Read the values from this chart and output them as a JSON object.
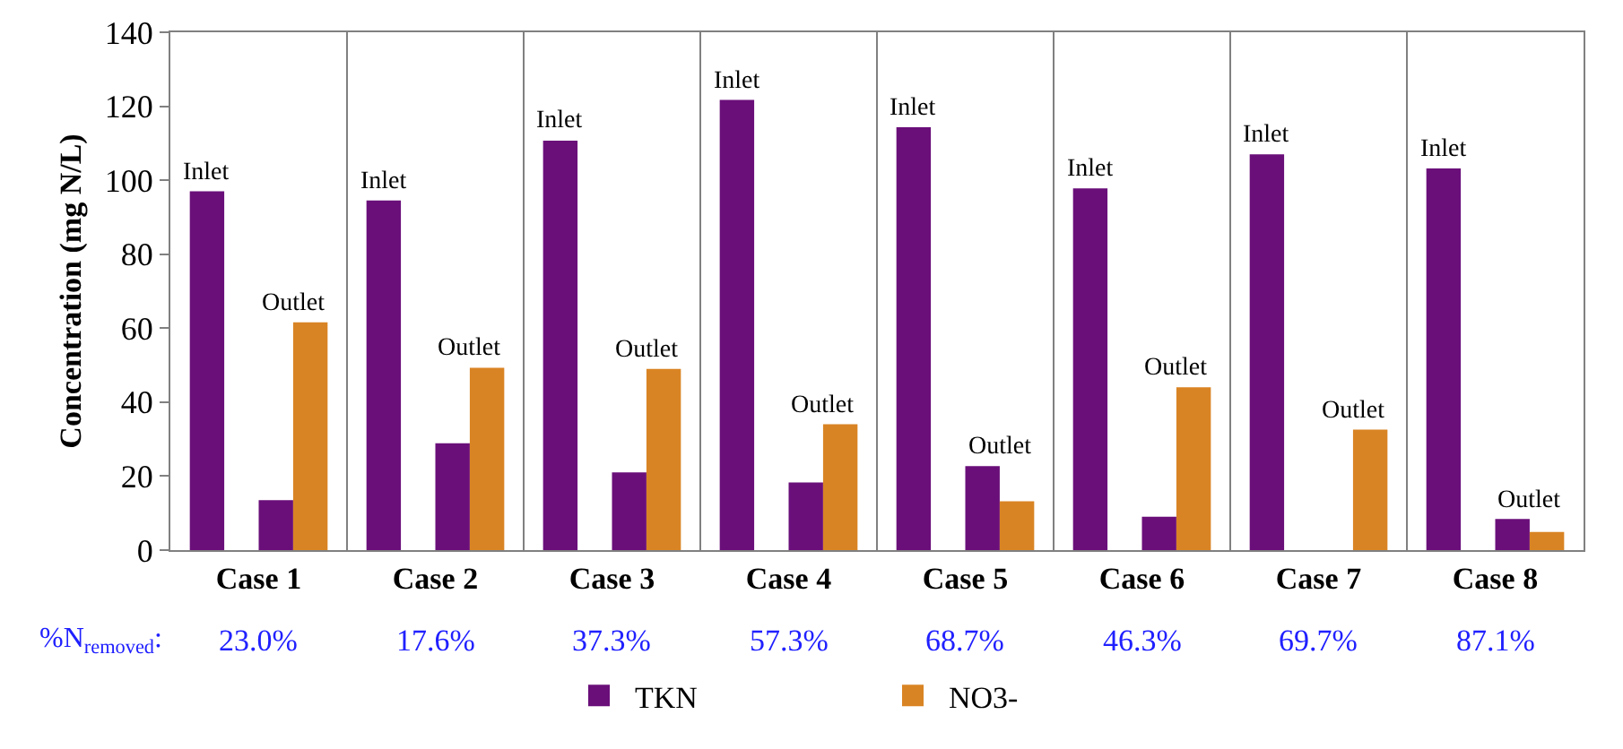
{
  "chart_data": {
    "type": "bar",
    "ylabel": "Concentration (mg N/L)",
    "categories": [
      "Case 1",
      "Case 2",
      "Case 3",
      "Case 4",
      "Case 5",
      "Case 6",
      "Case 7",
      "Case 8"
    ],
    "series": [
      {
        "name": "TKN",
        "color": "#6a0f7a",
        "values": [
          97,
          94.5,
          110.7,
          121.7,
          114.3,
          97.8,
          107,
          103.2
        ]
      },
      {
        "name": "NO3-",
        "color": "#d98424",
        "values": [
          0,
          0,
          0,
          0,
          0,
          0,
          0,
          0
        ]
      },
      {
        "color": "#6a0f7a",
        "values": [
          13.5,
          28.9,
          21,
          18.3,
          22.7,
          9,
          0,
          8.4
        ]
      },
      {
        "color": "#d98424",
        "values": [
          61.6,
          49.3,
          49,
          34,
          13.2,
          44,
          32.6,
          4.9
        ]
      }
    ],
    "ylim": [
      0,
      140
    ],
    "yticks": [
      0,
      20,
      40,
      60,
      80,
      100,
      120,
      140
    ],
    "grid": "x",
    "legend": "bottom",
    "annotations": [
      "Inlet",
      "Outlet",
      "Inlet",
      "Outlet",
      "Inlet",
      "Outlet",
      "Inlet",
      "Outlet",
      "Inlet",
      "Outlet",
      "Inlet",
      "Outlet",
      "Inlet",
      "Outlet",
      "Inlet",
      "Outlet",
      "%N$_{removed}$:",
      "23.0%",
      "17.6%",
      "37.3%",
      "57.3%",
      "68.7%",
      "46.3%",
      "69.7%",
      "87.1%"
    ]
  }
}
